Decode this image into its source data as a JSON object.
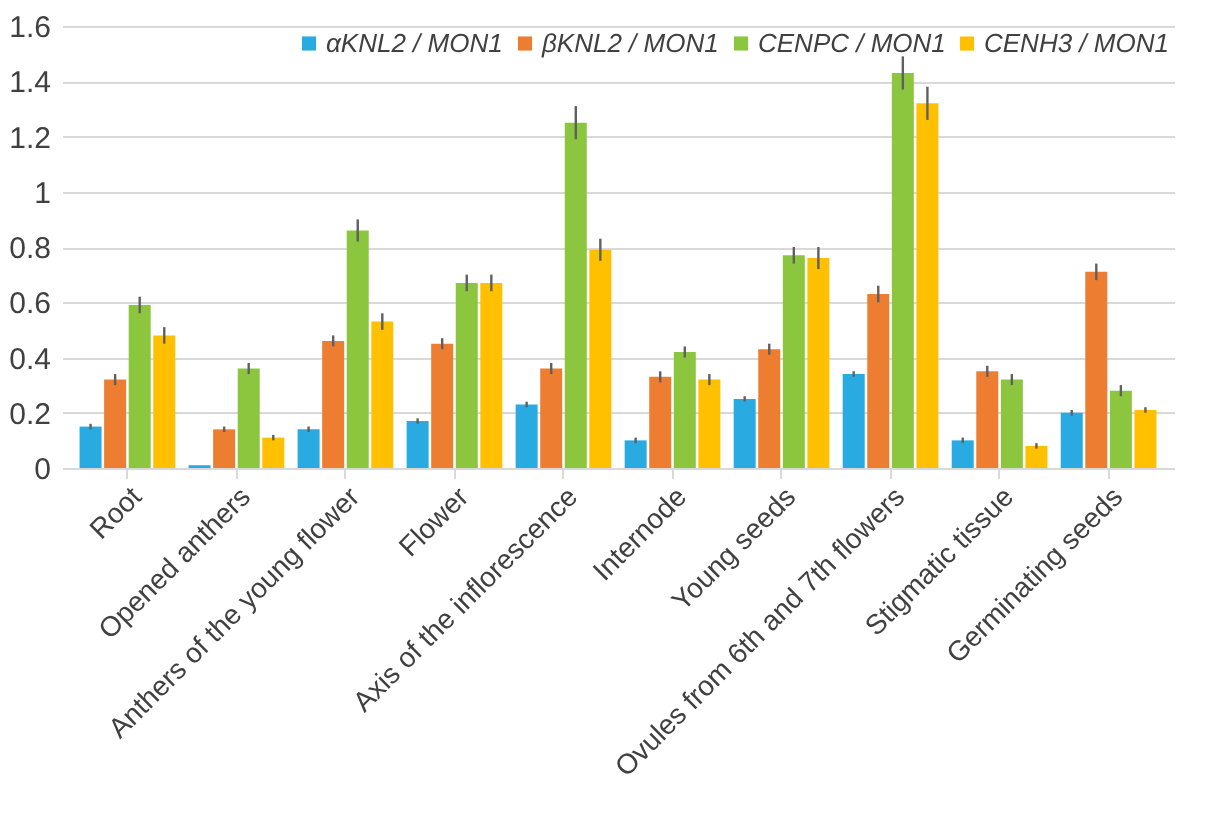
{
  "chart_data": {
    "type": "bar",
    "categories": [
      "Root",
      "Opened anthers",
      "Anthers of the young flower",
      "Flower",
      "Axis of the inflorescence",
      "Internode",
      "Young seeds",
      "Ovules from 6th and 7th flowers",
      "Stigmatic tissue",
      "Germinating seeds"
    ],
    "series": [
      {
        "name": "αKNL2 / MON1",
        "color": "#29abe2",
        "values": [
          0.15,
          0.01,
          0.14,
          0.17,
          0.23,
          0.1,
          0.25,
          0.34,
          0.1,
          0.2
        ],
        "errors": [
          0.01,
          null,
          0.01,
          0.01,
          0.01,
          0.01,
          0.01,
          0.01,
          0.01,
          0.01
        ]
      },
      {
        "name": "βKNL2 / MON1",
        "color": "#ed7d31",
        "values": [
          0.32,
          0.14,
          0.46,
          0.45,
          0.36,
          0.33,
          0.43,
          0.63,
          0.35,
          0.71
        ],
        "errors": [
          0.02,
          0.01,
          0.02,
          0.02,
          0.02,
          0.02,
          0.02,
          0.03,
          0.02,
          0.03
        ]
      },
      {
        "name": "CENPC / MON1",
        "color": "#8cc63f",
        "values": [
          0.59,
          0.36,
          0.86,
          0.67,
          1.25,
          0.42,
          0.77,
          1.43,
          0.32,
          0.28
        ],
        "errors": [
          0.03,
          0.02,
          0.04,
          0.03,
          0.06,
          0.02,
          0.03,
          0.06,
          0.02,
          0.02
        ]
      },
      {
        "name": "CENH3 / MON1",
        "color": "#ffc000",
        "values": [
          0.48,
          0.11,
          0.53,
          0.67,
          0.79,
          0.32,
          0.76,
          1.32,
          0.08,
          0.21
        ],
        "errors": [
          0.03,
          0.01,
          0.03,
          0.03,
          0.04,
          0.02,
          0.04,
          0.06,
          0.01,
          0.01
        ]
      }
    ],
    "ylim": [
      0,
      1.6
    ],
    "yticks": [
      0,
      0.2,
      0.4,
      0.6,
      0.8,
      1,
      1.2,
      1.4,
      1.6
    ],
    "grid": "y",
    "legend": "top right"
  }
}
